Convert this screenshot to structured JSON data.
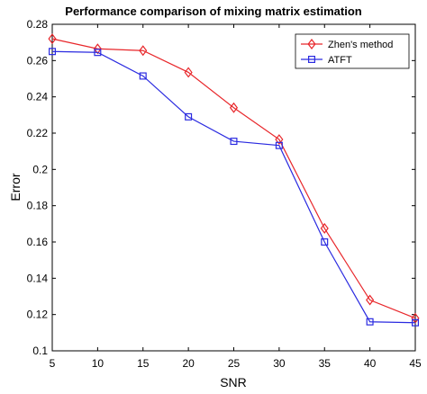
{
  "chart_data": {
    "type": "line",
    "title": "Performance comparison of mixing matrix estimation",
    "xlabel": "SNR",
    "ylabel": "Error",
    "x": [
      5,
      10,
      15,
      20,
      25,
      30,
      35,
      40,
      45
    ],
    "xlim": [
      5,
      45
    ],
    "ylim": [
      0.1,
      0.28
    ],
    "xticks": [
      5,
      10,
      15,
      20,
      25,
      30,
      35,
      40,
      45
    ],
    "yticks": [
      0.1,
      0.12,
      0.14,
      0.16,
      0.18,
      0.2,
      0.22,
      0.24,
      0.26,
      0.28
    ],
    "grid": false,
    "legend_position": "top-right",
    "series": [
      {
        "name": "Zhen's method",
        "color": "#e8262a",
        "marker": "diamond",
        "values": [
          0.272,
          0.2665,
          0.2655,
          0.2535,
          0.234,
          0.2165,
          0.1675,
          0.128,
          0.118
        ]
      },
      {
        "name": "ATFT",
        "color": "#2a2ae0",
        "marker": "square",
        "values": [
          0.265,
          0.2645,
          0.2515,
          0.229,
          0.2155,
          0.2132,
          0.16,
          0.116,
          0.1155
        ]
      }
    ]
  }
}
